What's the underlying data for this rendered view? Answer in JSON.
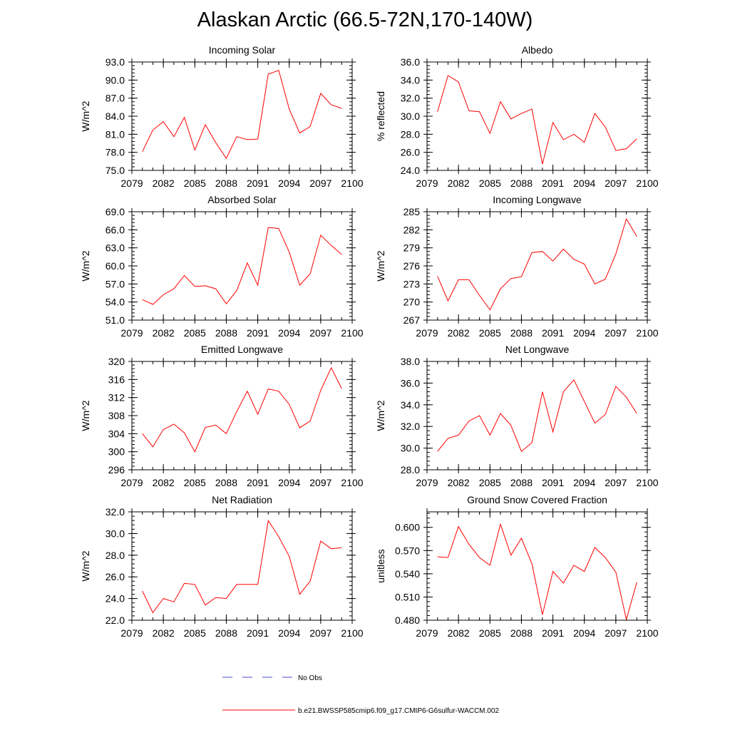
{
  "title": "Alaskan Arctic (66.5-72N,170-140W)",
  "colors": {
    "model": "#ff0000",
    "obs": "#4d4dcc",
    "axis": "#000000"
  },
  "legend": {
    "obs_label": "No Obs",
    "model_label": "b.e21.BWSSP585cmip6.f09_g17.CMIP6-G6sulfur-WACCM.002"
  },
  "chart_data": [
    {
      "type": "line",
      "title": "Incoming Solar",
      "ylabel": "W/m^2",
      "xlim": [
        2079,
        2100
      ],
      "ylim": [
        75.0,
        93.0
      ],
      "xticks": [
        "2079",
        "2082",
        "2085",
        "2088",
        "2091",
        "2094",
        "2097",
        "2100"
      ],
      "yticks": [
        "75.0",
        "78.0",
        "81.0",
        "84.0",
        "87.0",
        "90.0",
        "93.0"
      ],
      "series": [
        {
          "x": [
            2080,
            2081,
            2082,
            2083,
            2084,
            2085,
            2086,
            2087,
            2088,
            2089,
            2090,
            2091,
            2092,
            2093,
            2094,
            2095,
            2096,
            2097,
            2098,
            2099
          ],
          "values": [
            78.1,
            81.7,
            83.1,
            80.6,
            83.8,
            78.4,
            82.6,
            79.6,
            77.0,
            80.6,
            80.1,
            80.2,
            91.0,
            91.6,
            85.2,
            81.2,
            82.3,
            87.8,
            85.9,
            85.3
          ]
        }
      ]
    },
    {
      "type": "line",
      "title": "Albedo",
      "ylabel": "% reflected",
      "xlim": [
        2079,
        2100
      ],
      "ylim": [
        24.0,
        36.0
      ],
      "xticks": [
        "2079",
        "2082",
        "2085",
        "2088",
        "2091",
        "2094",
        "2097",
        "2100"
      ],
      "yticks": [
        "24.0",
        "26.0",
        "28.0",
        "30.0",
        "32.0",
        "34.0",
        "36.0"
      ],
      "series": [
        {
          "x": [
            2080,
            2081,
            2082,
            2083,
            2084,
            2085,
            2086,
            2087,
            2088,
            2089,
            2090,
            2091,
            2092,
            2093,
            2094,
            2095,
            2096,
            2097,
            2098,
            2099
          ],
          "values": [
            30.5,
            34.5,
            33.8,
            30.6,
            30.5,
            28.1,
            31.6,
            29.7,
            30.3,
            30.8,
            24.7,
            29.3,
            27.4,
            28.0,
            27.1,
            30.3,
            28.8,
            26.2,
            26.4,
            27.5
          ]
        }
      ]
    },
    {
      "type": "line",
      "title": "Absorbed Solar",
      "ylabel": "W/m^2",
      "xlim": [
        2079,
        2100
      ],
      "ylim": [
        51.0,
        69.0
      ],
      "xticks": [
        "2079",
        "2082",
        "2085",
        "2088",
        "2091",
        "2094",
        "2097",
        "2100"
      ],
      "yticks": [
        "51.0",
        "54.0",
        "57.0",
        "60.0",
        "63.0",
        "66.0",
        "69.0"
      ],
      "series": [
        {
          "x": [
            2080,
            2081,
            2082,
            2083,
            2084,
            2085,
            2086,
            2087,
            2088,
            2089,
            2090,
            2091,
            2092,
            2093,
            2094,
            2095,
            2096,
            2097,
            2098,
            2099
          ],
          "values": [
            54.4,
            53.6,
            55.2,
            56.2,
            58.4,
            56.6,
            56.7,
            56.2,
            53.7,
            55.9,
            60.5,
            56.8,
            66.4,
            66.2,
            62.3,
            56.8,
            58.7,
            65.1,
            63.4,
            61.9
          ]
        }
      ]
    },
    {
      "type": "line",
      "title": "Incoming Longwave",
      "ylabel": "W/m^2",
      "xlim": [
        2079,
        2100
      ],
      "ylim": [
        267,
        285
      ],
      "xticks": [
        "2079",
        "2082",
        "2085",
        "2088",
        "2091",
        "2094",
        "2097",
        "2100"
      ],
      "yticks": [
        "267",
        "270",
        "273",
        "276",
        "279",
        "282",
        "285"
      ],
      "series": [
        {
          "x": [
            2080,
            2081,
            2082,
            2083,
            2084,
            2085,
            2086,
            2087,
            2088,
            2089,
            2090,
            2091,
            2092,
            2093,
            2094,
            2095,
            2096,
            2097,
            2098,
            2099
          ],
          "values": [
            274.3,
            270.2,
            273.7,
            273.7,
            271.1,
            268.7,
            272.2,
            273.9,
            274.2,
            278.2,
            278.4,
            276.8,
            278.8,
            277.1,
            276.3,
            273.0,
            273.8,
            278.0,
            283.8,
            280.9
          ]
        }
      ]
    },
    {
      "type": "line",
      "title": "Emitted Longwave",
      "ylabel": "W/m^2",
      "xlim": [
        2079,
        2100
      ],
      "ylim": [
        296,
        320
      ],
      "xticks": [
        "2079",
        "2082",
        "2085",
        "2088",
        "2091",
        "2094",
        "2097",
        "2100"
      ],
      "yticks": [
        "296",
        "300",
        "304",
        "308",
        "312",
        "316",
        "320"
      ],
      "series": [
        {
          "x": [
            2080,
            2081,
            2082,
            2083,
            2084,
            2085,
            2086,
            2087,
            2088,
            2089,
            2090,
            2091,
            2092,
            2093,
            2094,
            2095,
            2096,
            2097,
            2098,
            2099
          ],
          "values": [
            304.0,
            301.1,
            304.9,
            306.1,
            304.2,
            300.0,
            305.4,
            305.9,
            304.0,
            308.9,
            313.4,
            308.3,
            313.9,
            313.4,
            310.5,
            305.3,
            306.8,
            313.6,
            318.6,
            314.0
          ]
        }
      ]
    },
    {
      "type": "line",
      "title": "Net Longwave",
      "ylabel": "W/m^2",
      "xlim": [
        2079,
        2100
      ],
      "ylim": [
        28.0,
        38.0
      ],
      "xticks": [
        "2079",
        "2082",
        "2085",
        "2088",
        "2091",
        "2094",
        "2097",
        "2100"
      ],
      "yticks": [
        "28.0",
        "30.0",
        "32.0",
        "34.0",
        "36.0",
        "38.0"
      ],
      "series": [
        {
          "x": [
            2080,
            2081,
            2082,
            2083,
            2084,
            2085,
            2086,
            2087,
            2088,
            2089,
            2090,
            2091,
            2092,
            2093,
            2094,
            2095,
            2096,
            2097,
            2098,
            2099
          ],
          "values": [
            29.7,
            30.9,
            31.2,
            32.5,
            33.0,
            31.2,
            33.2,
            32.1,
            29.7,
            30.5,
            35.2,
            31.5,
            35.2,
            36.3,
            34.3,
            32.3,
            33.1,
            35.7,
            34.7,
            33.2
          ]
        }
      ]
    },
    {
      "type": "line",
      "title": "Net Radiation",
      "ylabel": "W/m^2",
      "xlim": [
        2079,
        2100
      ],
      "ylim": [
        22.0,
        32.0
      ],
      "xticks": [
        "2079",
        "2082",
        "2085",
        "2088",
        "2091",
        "2094",
        "2097",
        "2100"
      ],
      "yticks": [
        "22.0",
        "24.0",
        "26.0",
        "28.0",
        "30.0",
        "32.0"
      ],
      "series": [
        {
          "x": [
            2080,
            2081,
            2082,
            2083,
            2084,
            2085,
            2086,
            2087,
            2088,
            2089,
            2090,
            2091,
            2092,
            2093,
            2094,
            2095,
            2096,
            2097,
            2098,
            2099
          ],
          "values": [
            24.7,
            22.7,
            24.0,
            23.7,
            25.4,
            25.3,
            23.4,
            24.1,
            24.0,
            25.3,
            25.3,
            25.3,
            31.2,
            29.7,
            27.9,
            24.4,
            25.6,
            29.3,
            28.6,
            28.7
          ]
        }
      ]
    },
    {
      "type": "line",
      "title": "Ground Snow Covered Fraction",
      "ylabel": "unitless",
      "xlim": [
        2079,
        2100
      ],
      "ylim": [
        0.48,
        0.62
      ],
      "xticks": [
        "2079",
        "2082",
        "2085",
        "2088",
        "2091",
        "2094",
        "2097",
        "2100"
      ],
      "yticks": [
        "0.480",
        "0.510",
        "0.540",
        "0.570",
        "0.600"
      ],
      "series": [
        {
          "x": [
            2080,
            2081,
            2082,
            2083,
            2084,
            2085,
            2086,
            2087,
            2088,
            2089,
            2090,
            2091,
            2092,
            2093,
            2094,
            2095,
            2096,
            2097,
            2098,
            2099
          ],
          "values": [
            0.562,
            0.561,
            0.601,
            0.578,
            0.561,
            0.551,
            0.604,
            0.564,
            0.586,
            0.553,
            0.487,
            0.543,
            0.528,
            0.551,
            0.543,
            0.574,
            0.561,
            0.542,
            0.481,
            0.529
          ]
        }
      ]
    }
  ]
}
